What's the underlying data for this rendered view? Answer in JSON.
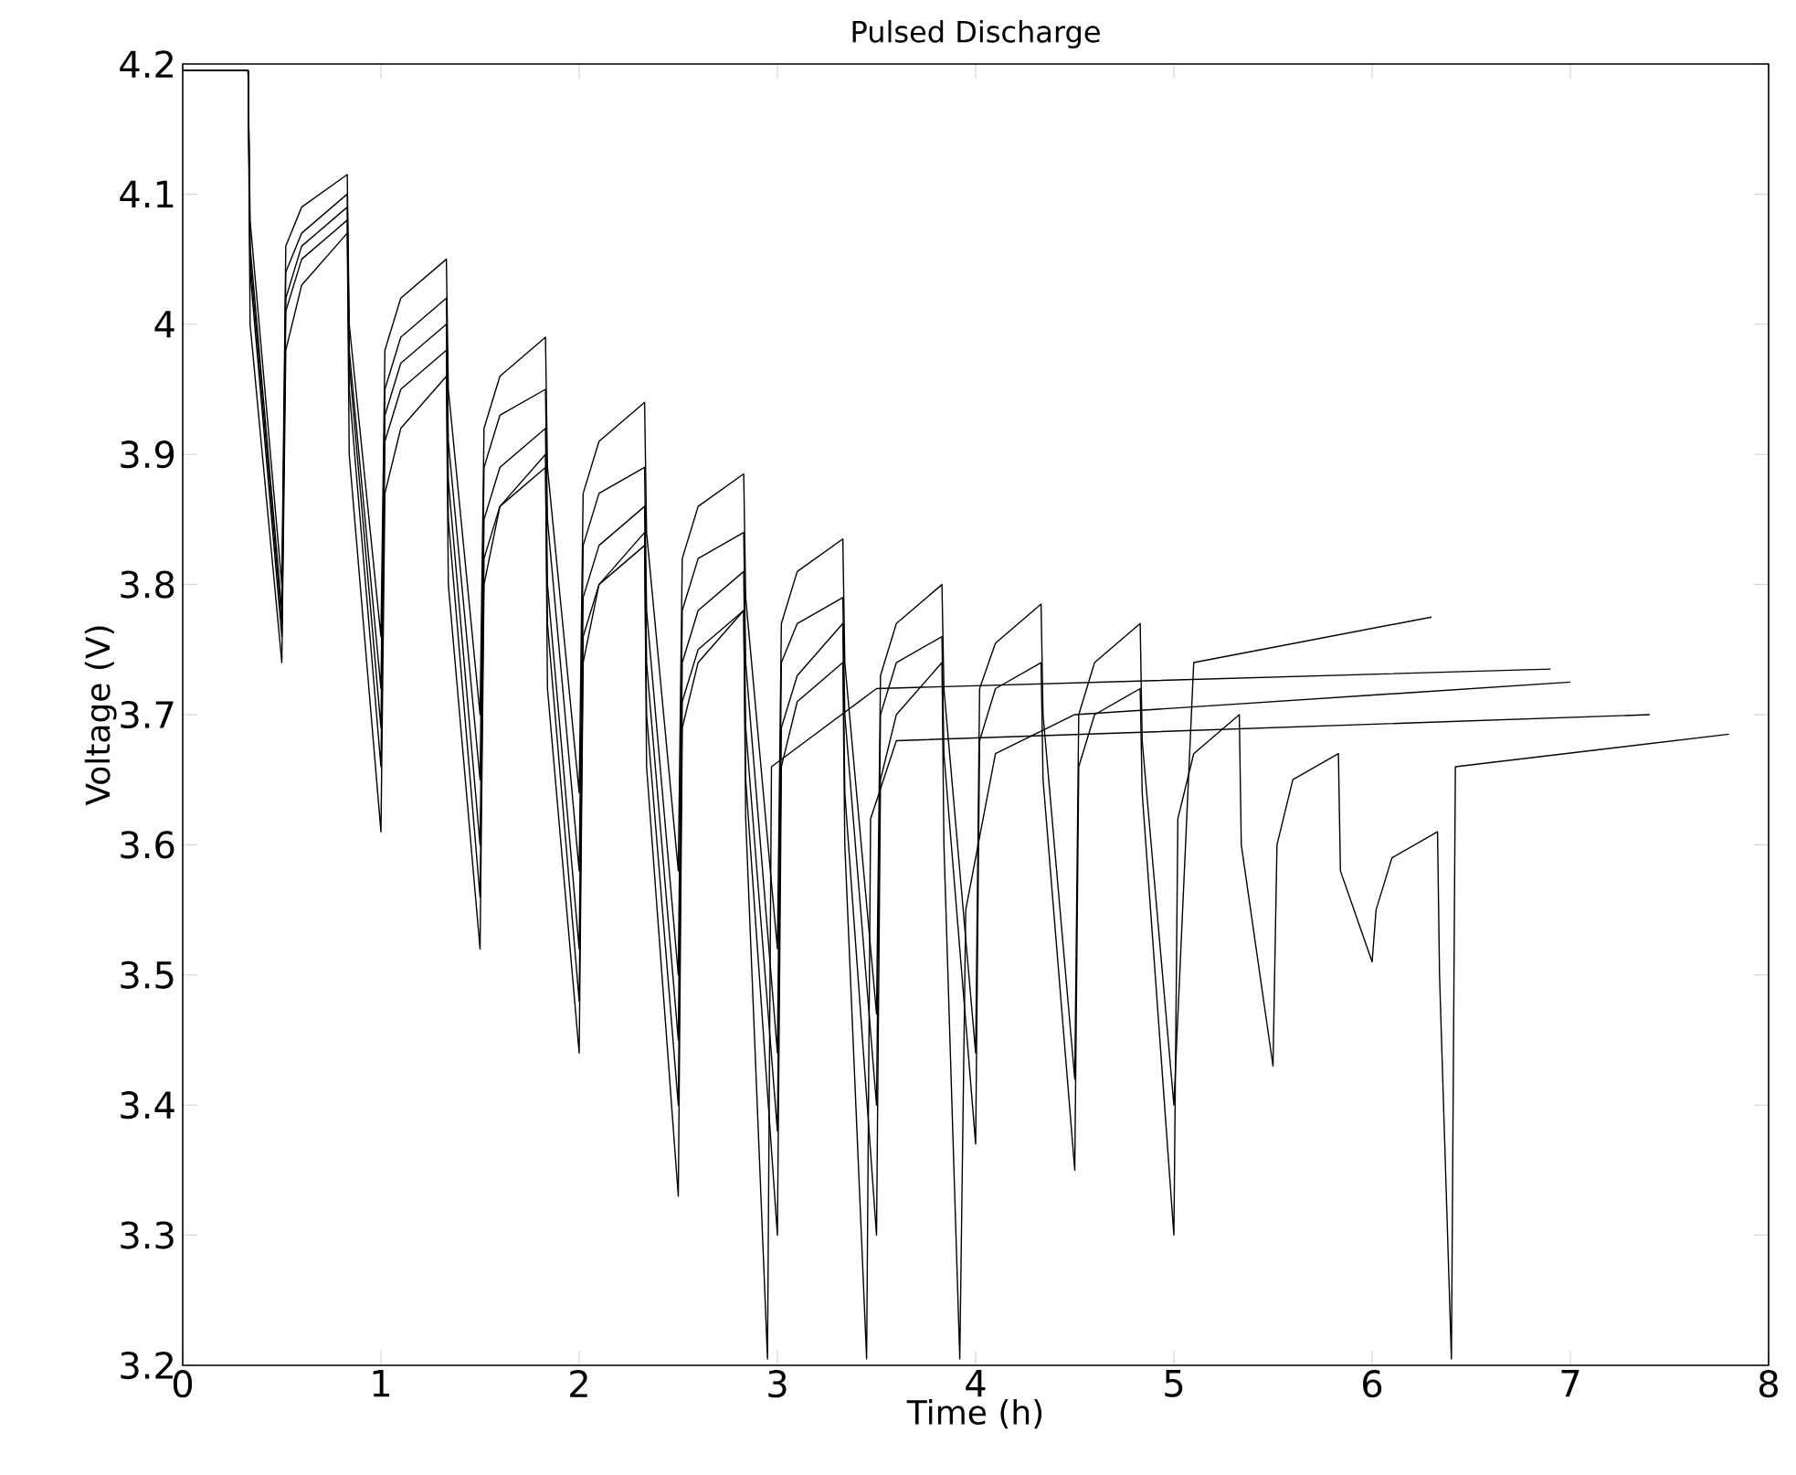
{
  "chart_data": {
    "type": "line",
    "title": "Pulsed Discharge",
    "xlabel": "Time (h)",
    "ylabel": "Voltage (V)",
    "xlim": [
      0,
      8
    ],
    "ylim": [
      3.2,
      4.2
    ],
    "xticks": [
      0,
      1,
      2,
      3,
      4,
      5,
      6,
      7,
      8
    ],
    "yticks": [
      3.2,
      3.3,
      3.4,
      3.5,
      3.6,
      3.7,
      3.8,
      3.9,
      {
        "value": 4,
        "label": "4"
      },
      4.1,
      4.2
    ],
    "grid": false,
    "marker": "none",
    "line_style": "solid",
    "series": [
      {
        "color": "#000000",
        "x": [
          0,
          0.33,
          0.34,
          0.5,
          0.52,
          0.6,
          0.83,
          0.84,
          1.0,
          1.02,
          1.1,
          1.33,
          1.34,
          1.5,
          1.52,
          1.6,
          1.83,
          1.84,
          2.0,
          2.02,
          2.1,
          2.33,
          2.34,
          2.5,
          2.52,
          2.6,
          2.83,
          2.84,
          3.0,
          3.02,
          3.1,
          3.33,
          3.34,
          3.5,
          3.52,
          3.6,
          3.83,
          3.84,
          4.0,
          4.02,
          4.1,
          4.33,
          4.34,
          4.5,
          4.52,
          4.6,
          4.83,
          4.84,
          5.0,
          5.1,
          6.3
        ],
        "values": [
          4.195,
          4.195,
          4.08,
          3.8,
          4.06,
          4.09,
          4.115,
          4.0,
          3.76,
          3.98,
          4.02,
          4.05,
          3.95,
          3.7,
          3.92,
          3.96,
          3.99,
          3.89,
          3.64,
          3.87,
          3.91,
          3.94,
          3.84,
          3.58,
          3.82,
          3.86,
          3.885,
          3.79,
          3.52,
          3.77,
          3.81,
          3.835,
          3.74,
          3.47,
          3.73,
          3.77,
          3.8,
          3.72,
          3.44,
          3.72,
          3.755,
          3.785,
          3.7,
          3.42,
          3.7,
          3.74,
          3.77,
          3.68,
          3.4,
          3.74,
          3.775
        ]
      },
      {
        "color": "#000000",
        "x": [
          0,
          0.33,
          0.34,
          0.5,
          0.52,
          0.6,
          0.83,
          0.84,
          1.0,
          1.02,
          1.1,
          1.33,
          1.34,
          1.5,
          1.52,
          1.6,
          1.83,
          1.84,
          2.0,
          2.02,
          2.1,
          2.33,
          2.34,
          2.5,
          2.52,
          2.6,
          2.83,
          2.84,
          3.0,
          3.02,
          3.1,
          3.33,
          3.34,
          3.5,
          3.52,
          3.6,
          3.83,
          3.84,
          3.92,
          3.95,
          4.1,
          4.5,
          7.0
        ],
        "values": [
          4.195,
          4.195,
          4.05,
          3.77,
          4.02,
          4.06,
          4.09,
          3.97,
          3.69,
          3.93,
          3.97,
          4.0,
          3.88,
          3.6,
          3.85,
          3.89,
          3.92,
          3.8,
          3.52,
          3.79,
          3.83,
          3.86,
          3.74,
          3.45,
          3.74,
          3.78,
          3.81,
          3.69,
          3.38,
          3.69,
          3.73,
          3.77,
          3.64,
          3.3,
          3.65,
          3.7,
          3.74,
          3.6,
          3.205,
          3.55,
          3.67,
          3.7,
          3.725
        ]
      },
      {
        "color": "#000000",
        "x": [
          0,
          0.33,
          0.34,
          0.5,
          0.52,
          0.6,
          0.83,
          0.84,
          1.0,
          1.02,
          1.1,
          1.33,
          1.34,
          1.5,
          1.52,
          1.6,
          1.83,
          1.84,
          2.0,
          2.02,
          2.1,
          2.33,
          2.34,
          2.5,
          2.52,
          2.6,
          2.83,
          2.84,
          2.95,
          2.97,
          3.5,
          6.9
        ],
        "values": [
          4.195,
          4.195,
          4.0,
          3.74,
          3.98,
          4.03,
          4.07,
          3.9,
          3.61,
          3.87,
          3.92,
          3.96,
          3.8,
          3.52,
          3.8,
          3.86,
          3.9,
          3.72,
          3.44,
          3.74,
          3.8,
          3.84,
          3.66,
          3.33,
          3.69,
          3.74,
          3.78,
          3.62,
          3.205,
          3.66,
          3.72,
          3.735
        ]
      },
      {
        "color": "#000000",
        "x": [
          0,
          0.33,
          0.34,
          0.5,
          0.52,
          0.6,
          0.83,
          0.84,
          1.0,
          1.02,
          1.1,
          1.33,
          1.34,
          1.5,
          1.52,
          1.6,
          1.83,
          1.84,
          2.0,
          2.02,
          2.1,
          2.33,
          2.34,
          2.5,
          2.52,
          2.6,
          2.83,
          2.84,
          3.0,
          3.02,
          3.1,
          3.33,
          3.34,
          3.5,
          3.52,
          3.6,
          3.83,
          3.84,
          4.0,
          4.02,
          4.1,
          4.33,
          4.34,
          4.5,
          4.52,
          4.6,
          4.83,
          4.84,
          5.0,
          5.02,
          5.1,
          5.33,
          5.34,
          5.5,
          5.52,
          5.6,
          5.83,
          5.84,
          6.0,
          6.02,
          6.1,
          6.33,
          6.34,
          6.4,
          6.42,
          7.8
        ],
        "values": [
          4.195,
          4.195,
          4.06,
          3.78,
          4.04,
          4.07,
          4.1,
          3.98,
          3.72,
          3.95,
          3.99,
          4.02,
          3.91,
          3.65,
          3.89,
          3.93,
          3.95,
          3.85,
          3.58,
          3.83,
          3.87,
          3.89,
          3.78,
          3.5,
          3.78,
          3.82,
          3.84,
          3.74,
          3.44,
          3.74,
          3.77,
          3.79,
          3.7,
          3.4,
          3.7,
          3.74,
          3.76,
          3.67,
          3.37,
          3.68,
          3.72,
          3.74,
          3.65,
          3.35,
          3.66,
          3.7,
          3.72,
          3.64,
          3.3,
          3.62,
          3.67,
          3.7,
          3.6,
          3.43,
          3.6,
          3.65,
          3.67,
          3.58,
          3.51,
          3.55,
          3.59,
          3.61,
          3.5,
          3.205,
          3.66,
          3.685
        ]
      },
      {
        "color": "#000000",
        "x": [
          0,
          0.33,
          0.34,
          0.5,
          0.52,
          0.6,
          0.83,
          0.84,
          1.0,
          1.02,
          1.1,
          1.33,
          1.34,
          1.5,
          1.52,
          1.6,
          1.83,
          1.84,
          2.0,
          2.02,
          2.1,
          2.33,
          2.34,
          2.5,
          2.52,
          2.6,
          2.83,
          2.84,
          3.0,
          3.02,
          3.1,
          3.33,
          3.34,
          3.45,
          3.47,
          3.6,
          7.4
        ],
        "values": [
          4.195,
          4.195,
          4.04,
          3.76,
          4.01,
          4.05,
          4.08,
          3.95,
          3.66,
          3.91,
          3.95,
          3.98,
          3.85,
          3.56,
          3.82,
          3.86,
          3.89,
          3.77,
          3.48,
          3.76,
          3.8,
          3.83,
          3.7,
          3.4,
          3.71,
          3.75,
          3.78,
          3.65,
          3.3,
          3.66,
          3.71,
          3.74,
          3.6,
          3.205,
          3.62,
          3.68,
          3.7
        ]
      }
    ]
  }
}
